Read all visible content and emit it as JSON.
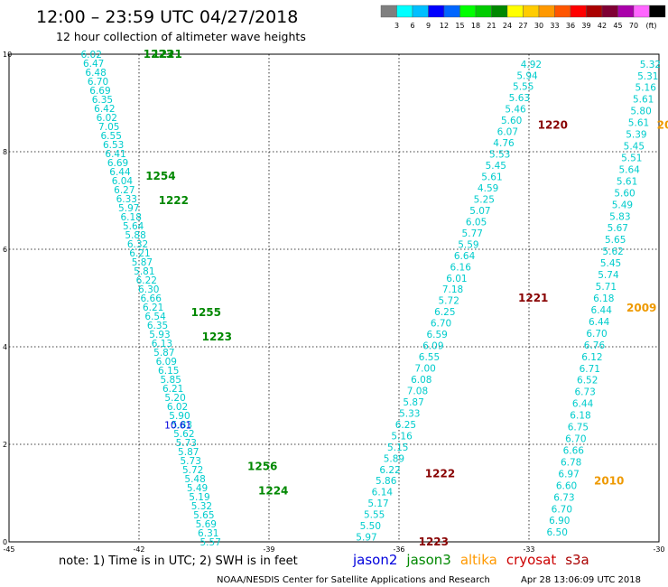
{
  "header": {
    "title": "12:00 – 23:59 UTC 04/27/2018",
    "subtitle": "12 hour collection of altimeter wave heights"
  },
  "scale": {
    "unit": "(ft)",
    "colors": [
      "#7f7f7f",
      "#00ffff",
      "#00bfff",
      "#0000ff",
      "#0066ff",
      "#00ff00",
      "#00cc00",
      "#008800",
      "#ffff00",
      "#ffcc00",
      "#ff9900",
      "#ff5500",
      "#ff0000",
      "#aa0000",
      "#7f0033",
      "#aa00aa",
      "#ff66ff",
      "#000000"
    ],
    "labels": [
      "3",
      "6",
      "9",
      "12",
      "15",
      "18",
      "21",
      "24",
      "27",
      "30",
      "33",
      "36",
      "39",
      "42",
      "45",
      "70"
    ]
  },
  "legend": {
    "note": "note:  1) Time is in UTC;  2) SWH is in feet",
    "satellites": [
      {
        "name": "jason2",
        "color": "#0000dd"
      },
      {
        "name": "jason3",
        "color": "#008800"
      },
      {
        "name": "altika",
        "color": "#ff9900"
      },
      {
        "name": "cryosat",
        "color": "#cc0000"
      },
      {
        "name": "s3a",
        "color": "#aa0000"
      }
    ]
  },
  "footer": {
    "credit": "NOAA/NESDIS Center for Satellite Applications and Research",
    "timestamp": "Apr 28 13:06:09 UTC 2018"
  },
  "chart_data": {
    "type": "scatter",
    "xlim": [
      -45,
      -30
    ],
    "ylim": [
      0,
      10
    ],
    "x_ticks": [
      "-45",
      "-42",
      "-39",
      "-36",
      "-33",
      "-30"
    ],
    "y_ticks": [
      "0",
      "2",
      "4",
      "6",
      "8",
      "10"
    ],
    "grid": true,
    "tracks": [
      {
        "name": "jason3-track",
        "color": "#00cccc",
        "start": [
          -43.1,
          10
        ],
        "end": [
          -40.35,
          0
        ],
        "values": [
          "6.02",
          "6.47",
          "6.48",
          "6.70",
          "6.69",
          "6.35",
          "6.42",
          "6.02",
          "7.05",
          "6.55",
          "6.53",
          "6.41",
          "6.69",
          "6.44",
          "6.04",
          "6.27",
          "6.33",
          "5.97",
          "6.18",
          "5.64",
          "5.88",
          "6.32",
          "6.21",
          "5.87",
          "5.81",
          "6.22",
          "6.30",
          "6.66",
          "6.21",
          "6.54",
          "6.35",
          "5.93",
          "6.13",
          "5.87",
          "6.09",
          "6.15",
          "5.85",
          "6.21",
          "5.20",
          "6.02",
          "5.90",
          "5.83",
          "5.62",
          "5.73",
          "5.87",
          "5.73",
          "5.72",
          "5.48",
          "5.49",
          "5.19",
          "5.32",
          "5.65",
          "5.69",
          "6.31",
          "5.57"
        ]
      },
      {
        "name": "cryosat-track",
        "color": "#00cccc",
        "start": [
          -32.95,
          9.8
        ],
        "end": [
          -36.75,
          0.1
        ],
        "values": [
          "4.92",
          "5.94",
          "5.55",
          "5.63",
          "5.46",
          "5.60",
          "6.07",
          "4.76",
          "5.53",
          "5.45",
          "5.61",
          "4.59",
          "5.25",
          "5.07",
          "6.05",
          "5.77",
          "5.59",
          "6.64",
          "6.16",
          "6.01",
          "7.18",
          "5.72",
          "6.25",
          "6.70",
          "6.59",
          "6.09",
          "6.55",
          "7.00",
          "6.08",
          "7.08",
          "5.87",
          "5.33",
          "6.25",
          "5.16",
          "5.15",
          "5.89",
          "6.22",
          "5.86",
          "6.14",
          "5.17",
          "5.55",
          "5.50",
          "5.97"
        ]
      },
      {
        "name": "altika-track",
        "color": "#00cccc",
        "start": [
          -30.2,
          9.8
        ],
        "end": [
          -32.35,
          0.2
        ],
        "values": [
          "5.32",
          "5.31",
          "5.16",
          "5.61",
          "5.80",
          "5.61",
          "5.39",
          "5.45",
          "5.51",
          "5.64",
          "5.61",
          "5.60",
          "5.49",
          "5.83",
          "5.67",
          "5.65",
          "5.62",
          "5.45",
          "5.74",
          "5.71",
          "6.18",
          "6.44",
          "6.44",
          "6.70",
          "6.76",
          "6.12",
          "6.71",
          "6.52",
          "6.73",
          "6.44",
          "6.18",
          "6.75",
          "6.70",
          "6.66",
          "6.78",
          "6.97",
          "6.60",
          "6.73",
          "6.70",
          "6.90",
          "6.50"
        ]
      }
    ],
    "special_points": [
      {
        "value": "10.61",
        "color": "#0000dd",
        "x": -41.1,
        "y": 2.4
      }
    ],
    "pass_times": [
      {
        "label": "1223",
        "color": "#008800",
        "x": -41.9,
        "y": 10.0
      },
      {
        "label": "1221",
        "color": "#008800",
        "x": -41.7,
        "y": 10.0
      },
      {
        "label": "1254",
        "color": "#008800",
        "x": -41.85,
        "y": 7.5
      },
      {
        "label": "1222",
        "color": "#008800",
        "x": -41.55,
        "y": 7.0
      },
      {
        "label": "1255",
        "color": "#008800",
        "x": -40.8,
        "y": 4.7
      },
      {
        "label": "1223",
        "color": "#008800",
        "x": -40.55,
        "y": 4.2
      },
      {
        "label": "1256",
        "color": "#008800",
        "x": -39.5,
        "y": 1.55
      },
      {
        "label": "1224",
        "color": "#008800",
        "x": -39.25,
        "y": 1.05
      },
      {
        "label": "1220",
        "color": "#880000",
        "x": -32.8,
        "y": 8.55
      },
      {
        "label": "1221",
        "color": "#880000",
        "x": -33.25,
        "y": 5.0
      },
      {
        "label": "1222",
        "color": "#880000",
        "x": -35.4,
        "y": 1.4
      },
      {
        "label": "1223",
        "color": "#880000",
        "x": -35.55,
        "y": 0.0
      },
      {
        "label": "20",
        "color": "#ee9900",
        "x": -30.05,
        "y": 8.55
      },
      {
        "label": "2009",
        "color": "#ee9900",
        "x": -30.75,
        "y": 4.8
      },
      {
        "label": "2010",
        "color": "#ee9900",
        "x": -31.5,
        "y": 1.25
      }
    ]
  }
}
